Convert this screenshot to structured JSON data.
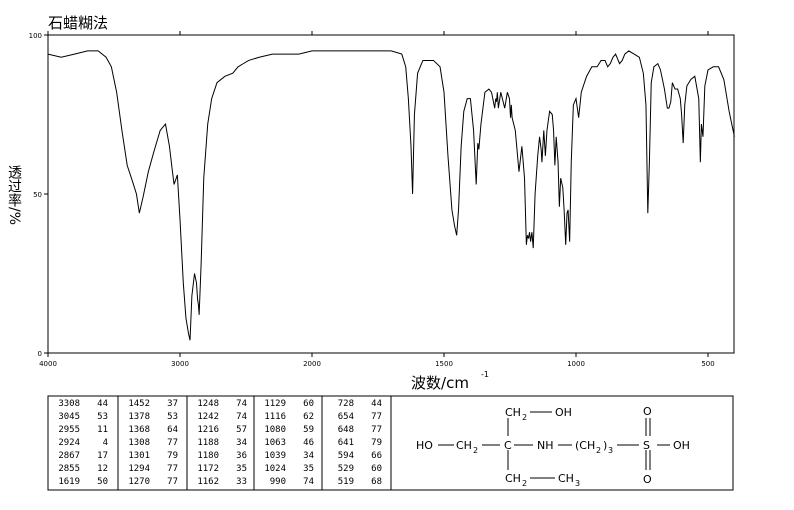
{
  "chart_data": {
    "type": "line",
    "title": "石蜡糊法",
    "xlabel": "波数/cm",
    "xlabel_sup": "-1",
    "ylabel": "透过率/%",
    "color": "#000000",
    "xlim": [
      4000,
      400
    ],
    "xticks": [
      4000,
      3000,
      2000,
      1500,
      1000,
      500
    ],
    "ylim": [
      0,
      100
    ],
    "yticks": [
      0,
      50,
      100
    ],
    "x": [
      4000,
      3900,
      3800,
      3700,
      3620,
      3560,
      3520,
      3480,
      3440,
      3400,
      3360,
      3330,
      3308,
      3280,
      3240,
      3200,
      3150,
      3110,
      3080,
      3060,
      3045,
      3020,
      3000,
      2975,
      2955,
      2935,
      2924,
      2910,
      2890,
      2875,
      2867,
      2860,
      2855,
      2840,
      2820,
      2790,
      2760,
      2720,
      2660,
      2600,
      2560,
      2520,
      2480,
      2400,
      2300,
      2200,
      2100,
      2000,
      1900,
      1800,
      1700,
      1660,
      1645,
      1635,
      1625,
      1619,
      1612,
      1600,
      1580,
      1540,
      1515,
      1500,
      1485,
      1470,
      1460,
      1452,
      1445,
      1435,
      1425,
      1412,
      1400,
      1388,
      1378,
      1372,
      1368,
      1360,
      1345,
      1330,
      1320,
      1308,
      1304,
      1301,
      1298,
      1294,
      1285,
      1270,
      1260,
      1252,
      1248,
      1245,
      1242,
      1230,
      1216,
      1205,
      1195,
      1188,
      1184,
      1180,
      1176,
      1172,
      1167,
      1162,
      1155,
      1145,
      1138,
      1132,
      1129,
      1122,
      1116,
      1110,
      1100,
      1090,
      1085,
      1080,
      1075,
      1068,
      1063,
      1058,
      1050,
      1045,
      1039,
      1034,
      1030,
      1024,
      1018,
      1010,
      1000,
      990,
      980,
      960,
      940,
      920,
      905,
      890,
      880,
      870,
      860,
      850,
      835,
      825,
      815,
      800,
      780,
      760,
      745,
      735,
      728,
      722,
      715,
      705,
      690,
      680,
      665,
      654,
      648,
      641,
      635,
      625,
      615,
      605,
      600,
      594,
      588,
      580,
      565,
      550,
      535,
      529,
      525,
      519,
      512,
      500,
      480,
      460,
      440,
      420,
      400
    ],
    "values": [
      94,
      93,
      94,
      95,
      95,
      93,
      90,
      82,
      70,
      59,
      54,
      50,
      44,
      49,
      57,
      63,
      70,
      72,
      65,
      58,
      53,
      56,
      42,
      22,
      11,
      6,
      4,
      18,
      25,
      22,
      17,
      15,
      12,
      28,
      55,
      72,
      80,
      85,
      87,
      88,
      90,
      91,
      92,
      93,
      94,
      94,
      94,
      95,
      95,
      95,
      95,
      94,
      90,
      80,
      65,
      50,
      75,
      88,
      92,
      92,
      90,
      82,
      62,
      45,
      40,
      37,
      45,
      65,
      76,
      80,
      80,
      70,
      53,
      66,
      64,
      72,
      82,
      83,
      82,
      77,
      80,
      79,
      82,
      77,
      82,
      77,
      82,
      80,
      74,
      78,
      74,
      70,
      57,
      65,
      55,
      34,
      37,
      36,
      38,
      35,
      38,
      33,
      50,
      62,
      68,
      64,
      60,
      70,
      62,
      70,
      76,
      75,
      70,
      59,
      68,
      60,
      46,
      55,
      52,
      45,
      34,
      44,
      45,
      35,
      60,
      78,
      80,
      74,
      82,
      87,
      90,
      90,
      92,
      92,
      90,
      91,
      93,
      94,
      91,
      92,
      94,
      95,
      94,
      93,
      88,
      78,
      44,
      60,
      85,
      90,
      91,
      89,
      83,
      77,
      77,
      79,
      85,
      83,
      83,
      80,
      75,
      66,
      78,
      84,
      86,
      87,
      80,
      60,
      72,
      68,
      84,
      89,
      90,
      90,
      86,
      76,
      68
    ]
  },
  "peak_table": [
    [
      [
        3308,
        44
      ],
      [
        3045,
        53
      ],
      [
        2955,
        11
      ],
      [
        2924,
        4
      ],
      [
        2867,
        17
      ],
      [
        2855,
        12
      ],
      [
        1619,
        50
      ]
    ],
    [
      [
        1452,
        37
      ],
      [
        1378,
        53
      ],
      [
        1368,
        64
      ],
      [
        1308,
        77
      ],
      [
        1301,
        79
      ],
      [
        1294,
        77
      ],
      [
        1270,
        77
      ]
    ],
    [
      [
        1248,
        74
      ],
      [
        1242,
        74
      ],
      [
        1216,
        57
      ],
      [
        1188,
        34
      ],
      [
        1180,
        36
      ],
      [
        1172,
        35
      ],
      [
        1162,
        33
      ]
    ],
    [
      [
        1129,
        60
      ],
      [
        1116,
        62
      ],
      [
        1080,
        59
      ],
      [
        1063,
        46
      ],
      [
        1039,
        34
      ],
      [
        1024,
        35
      ],
      [
        990,
        74
      ]
    ],
    [
      [
        728,
        44
      ],
      [
        654,
        77
      ],
      [
        648,
        77
      ],
      [
        641,
        79
      ],
      [
        594,
        66
      ],
      [
        529,
        60
      ],
      [
        519,
        68
      ]
    ]
  ],
  "structure": {
    "atoms": [
      "CH",
      "2",
      "OH",
      "HO",
      "CH",
      "2",
      "C",
      "NH",
      "(CH",
      "2",
      ")",
      "3",
      "S",
      "O",
      "O",
      "OH",
      "CH",
      "2",
      "CH",
      "3"
    ]
  }
}
